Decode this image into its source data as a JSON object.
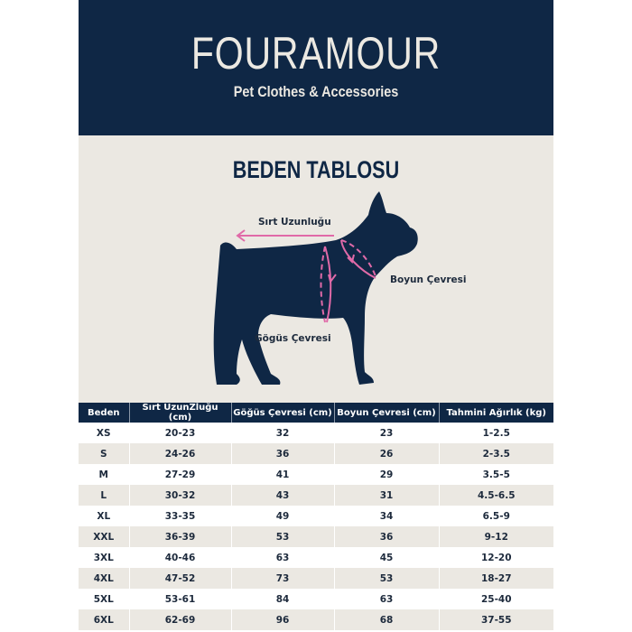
{
  "header": {
    "brand": "FOURAMOUR",
    "tagline": "Pet Clothes & Accessories"
  },
  "section_title": "BEDEN TABLOSU",
  "diagram": {
    "labels": {
      "back_length": "Sırt Uzunluğu",
      "neck": "Boyun Çevresi",
      "chest": "Gögüs Çevresi"
    },
    "colors": {
      "silhouette": "#0f2745",
      "guide": "#e06aa8"
    }
  },
  "table": {
    "columns": [
      "Beden",
      "Sırt UzunZluğu (cm)",
      "Göğüs Çevresi (cm)",
      "Boyun Çevresi (cm)",
      "Tahmini Ağırlık (kg)"
    ],
    "rows": [
      [
        "XS",
        "20-23",
        "32",
        "23",
        "1-2.5"
      ],
      [
        "S",
        "24-26",
        "36",
        "26",
        "2-3.5"
      ],
      [
        "M",
        "27-29",
        "41",
        "29",
        "3.5-5"
      ],
      [
        "L",
        "30-32",
        "43",
        "31",
        "4.5-6.5"
      ],
      [
        "XL",
        "33-35",
        "49",
        "34",
        "6.5-9"
      ],
      [
        "XXL",
        "36-39",
        "53",
        "36",
        "9-12"
      ],
      [
        "3XL",
        "40-46",
        "63",
        "45",
        "12-20"
      ],
      [
        "4XL",
        "47-52",
        "73",
        "53",
        "18-27"
      ],
      [
        "5XL",
        "53-61",
        "84",
        "63",
        "25-40"
      ],
      [
        "6XL",
        "62-69",
        "96",
        "68",
        "37-55"
      ]
    ]
  }
}
